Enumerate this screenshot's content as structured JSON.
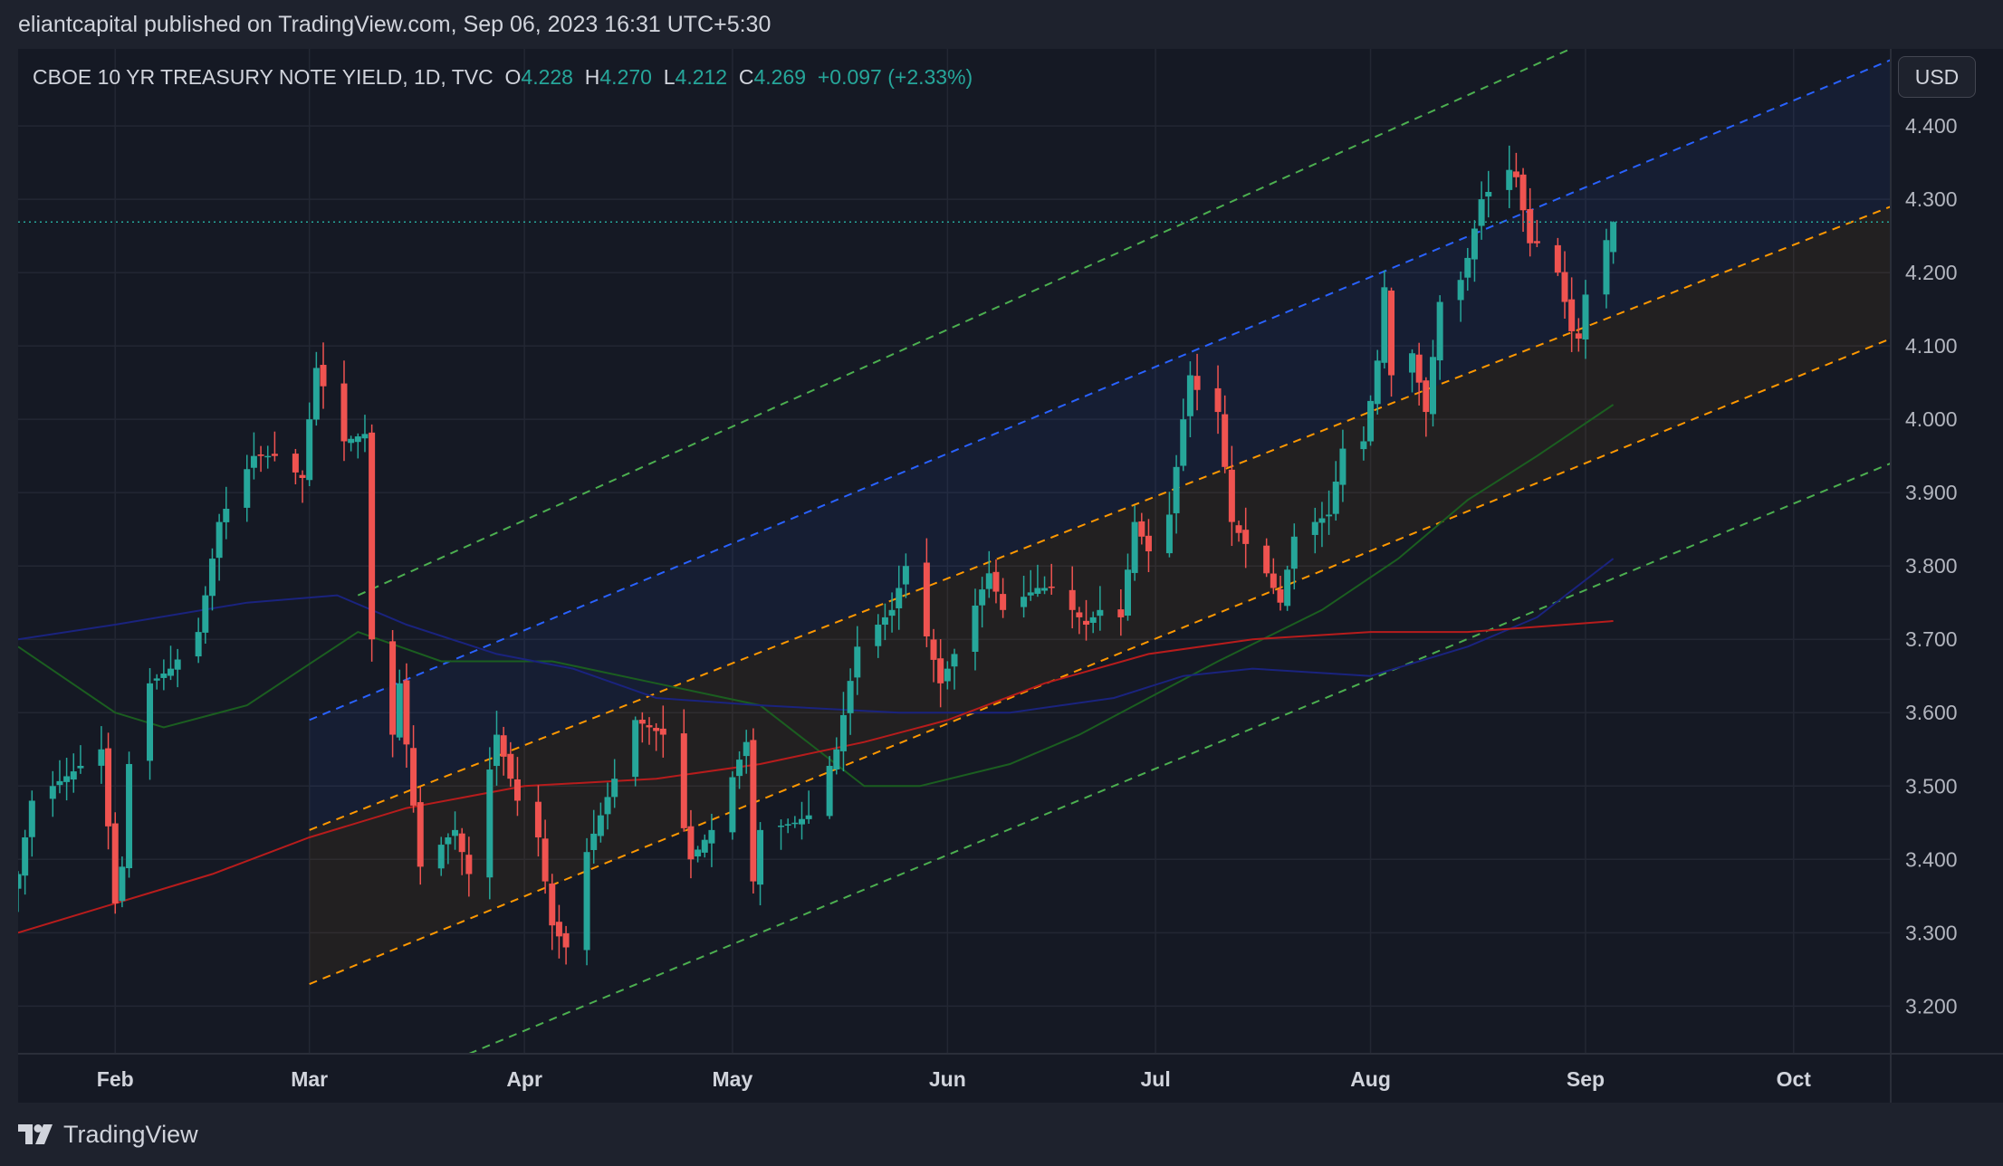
{
  "header": {
    "published_text": "eliantcapital published on TradingView.com, Sep 06, 2023 16:31 UTC+5:30"
  },
  "legend": {
    "symbol": "CBOE 10 YR TREASURY NOTE YIELD, 1D, TVC",
    "open_label": "O",
    "open": "4.228",
    "high_label": "H",
    "high": "4.270",
    "low_label": "L",
    "low": "4.212",
    "close_label": "C",
    "close": "4.269",
    "change": "+0.097 (+2.33%)"
  },
  "currency_button": "USD",
  "last_price_label": "4.269",
  "footer": {
    "brand": "TradingView"
  },
  "colors": {
    "up": "#26a69a",
    "down": "#ef5350",
    "background": "#151924",
    "channel_blue": "#2962ff",
    "channel_orange": "#ff9800",
    "channel_green": "#4caf50",
    "ma_fast": "#1b5e20",
    "ma_mid": "#1a237e",
    "ma_slow": "#b71c1c"
  },
  "chart_data": {
    "type": "candlestick",
    "title": "CBOE 10 YR TREASURY NOTE YIELD, 1D, TVC",
    "x_tick_labels": [
      "Feb",
      "Mar",
      "Apr",
      "May",
      "Jun",
      "Jul",
      "Aug",
      "Sep",
      "Oct"
    ],
    "x_tick_dates": [
      "2023-02-01",
      "2023-03-01",
      "2023-04-01",
      "2023-05-01",
      "2023-06-01",
      "2023-07-01",
      "2023-08-01",
      "2023-09-01",
      "2023-10-01"
    ],
    "x_range": [
      "2023-01-18",
      "2023-10-15"
    ],
    "y_tick_labels": [
      "4.400",
      "4.300",
      "4.200",
      "4.100",
      "4.000",
      "3.900",
      "3.800",
      "3.700",
      "3.600",
      "3.500",
      "3.400",
      "3.300",
      "3.200"
    ],
    "ylim": [
      3.135,
      4.505
    ],
    "grid": true,
    "last_price_line": 4.269,
    "anchors": [
      [
        "2023-01-18",
        3.38
      ],
      [
        "2023-01-20",
        3.48
      ],
      [
        "2023-01-26",
        3.52
      ],
      [
        "2023-01-30",
        3.55
      ],
      [
        "2023-02-01",
        3.34
      ],
      [
        "2023-02-02",
        3.39
      ],
      [
        "2023-02-03",
        3.53
      ],
      [
        "2023-02-06",
        3.64
      ],
      [
        "2023-02-09",
        3.66
      ],
      [
        "2023-02-13",
        3.71
      ],
      [
        "2023-02-16",
        3.86
      ],
      [
        "2023-02-21",
        3.95
      ],
      [
        "2023-02-24",
        3.95
      ],
      [
        "2023-02-28",
        3.92
      ],
      [
        "2023-03-01",
        4.0
      ],
      [
        "2023-03-02",
        4.07
      ],
      [
        "2023-03-06",
        3.97
      ],
      [
        "2023-03-09",
        3.98
      ],
      [
        "2023-03-10",
        3.7
      ],
      [
        "2023-03-13",
        3.57
      ],
      [
        "2023-03-14",
        3.64
      ],
      [
        "2023-03-17",
        3.39
      ],
      [
        "2023-03-22",
        3.44
      ],
      [
        "2023-03-24",
        3.38
      ],
      [
        "2023-03-28",
        3.57
      ],
      [
        "2023-03-31",
        3.48
      ],
      [
        "2023-04-03",
        3.43
      ],
      [
        "2023-04-05",
        3.31
      ],
      [
        "2023-04-07",
        3.28
      ],
      [
        "2023-04-10",
        3.41
      ],
      [
        "2023-04-14",
        3.51
      ],
      [
        "2023-04-17",
        3.59
      ],
      [
        "2023-04-21",
        3.57
      ],
      [
        "2023-04-25",
        3.4
      ],
      [
        "2023-04-28",
        3.44
      ],
      [
        "2023-05-03",
        3.56
      ],
      [
        "2023-05-04",
        3.37
      ],
      [
        "2023-05-05",
        3.44
      ],
      [
        "2023-05-10",
        3.45
      ],
      [
        "2023-05-12",
        3.46
      ],
      [
        "2023-05-16",
        3.55
      ],
      [
        "2023-05-19",
        3.69
      ],
      [
        "2023-05-24",
        3.74
      ],
      [
        "2023-05-26",
        3.8
      ],
      [
        "2023-05-31",
        3.64
      ],
      [
        "2023-06-02",
        3.68
      ],
      [
        "2023-06-07",
        3.79
      ],
      [
        "2023-06-09",
        3.74
      ],
      [
        "2023-06-14",
        3.77
      ],
      [
        "2023-06-16",
        3.77
      ],
      [
        "2023-06-21",
        3.72
      ],
      [
        "2023-06-23",
        3.74
      ],
      [
        "2023-06-26",
        3.73
      ],
      [
        "2023-06-28",
        3.86
      ],
      [
        "2023-06-30",
        3.82
      ],
      [
        "2023-07-03",
        3.87
      ],
      [
        "2023-07-05",
        4.0
      ],
      [
        "2023-07-06",
        4.06
      ],
      [
        "2023-07-07",
        4.04
      ],
      [
        "2023-07-10",
        4.01
      ],
      [
        "2023-07-12",
        3.86
      ],
      [
        "2023-07-14",
        3.83
      ],
      [
        "2023-07-17",
        3.79
      ],
      [
        "2023-07-19",
        3.75
      ],
      [
        "2023-07-21",
        3.84
      ],
      [
        "2023-07-24",
        3.86
      ],
      [
        "2023-07-26",
        3.87
      ],
      [
        "2023-07-28",
        3.96
      ],
      [
        "2023-07-31",
        3.97
      ],
      [
        "2023-08-02",
        4.08
      ],
      [
        "2023-08-03",
        4.18
      ],
      [
        "2023-08-04",
        4.06
      ],
      [
        "2023-08-07",
        4.09
      ],
      [
        "2023-08-09",
        4.01
      ],
      [
        "2023-08-11",
        4.16
      ],
      [
        "2023-08-14",
        4.19
      ],
      [
        "2023-08-15",
        4.22
      ],
      [
        "2023-08-17",
        4.3
      ],
      [
        "2023-08-21",
        4.34
      ],
      [
        "2023-08-22",
        4.33
      ],
      [
        "2023-08-24",
        4.24
      ],
      [
        "2023-08-25",
        4.24
      ],
      [
        "2023-08-28",
        4.2
      ],
      [
        "2023-08-30",
        4.12
      ],
      [
        "2023-08-31",
        4.11
      ],
      [
        "2023-09-01",
        4.17
      ],
      [
        "2023-09-05",
        4.269
      ]
    ],
    "last_candle": {
      "date": "2023-09-05",
      "open": 4.228,
      "high": 4.27,
      "low": 4.212,
      "close": 4.269
    },
    "moving_averages": [
      {
        "color": "#1b5e20",
        "points": [
          [
            "2023-01-18",
            3.69
          ],
          [
            "2023-02-01",
            3.6
          ],
          [
            "2023-02-08",
            3.58
          ],
          [
            "2023-02-20",
            3.61
          ],
          [
            "2023-02-28",
            3.66
          ],
          [
            "2023-03-08",
            3.71
          ],
          [
            "2023-03-20",
            3.67
          ],
          [
            "2023-04-05",
            3.67
          ],
          [
            "2023-04-20",
            3.64
          ],
          [
            "2023-05-05",
            3.61
          ],
          [
            "2023-05-20",
            3.5
          ],
          [
            "2023-05-28",
            3.5
          ],
          [
            "2023-06-10",
            3.53
          ],
          [
            "2023-06-20",
            3.57
          ],
          [
            "2023-06-30",
            3.62
          ],
          [
            "2023-07-10",
            3.67
          ],
          [
            "2023-07-25",
            3.74
          ],
          [
            "2023-08-05",
            3.81
          ],
          [
            "2023-08-15",
            3.89
          ],
          [
            "2023-08-25",
            3.95
          ],
          [
            "2023-09-05",
            4.02
          ]
        ]
      },
      {
        "color": "#1a237e",
        "points": [
          [
            "2023-01-18",
            3.7
          ],
          [
            "2023-02-01",
            3.72
          ],
          [
            "2023-02-20",
            3.75
          ],
          [
            "2023-03-05",
            3.76
          ],
          [
            "2023-03-15",
            3.72
          ],
          [
            "2023-03-28",
            3.68
          ],
          [
            "2023-04-08",
            3.66
          ],
          [
            "2023-04-20",
            3.62
          ],
          [
            "2023-05-05",
            3.61
          ],
          [
            "2023-05-25",
            3.6
          ],
          [
            "2023-06-10",
            3.6
          ],
          [
            "2023-06-25",
            3.62
          ],
          [
            "2023-07-05",
            3.65
          ],
          [
            "2023-07-15",
            3.66
          ],
          [
            "2023-08-01",
            3.65
          ],
          [
            "2023-08-15",
            3.69
          ],
          [
            "2023-08-25",
            3.73
          ],
          [
            "2023-09-05",
            3.81
          ]
        ]
      },
      {
        "color": "#b71c1c",
        "points": [
          [
            "2023-01-18",
            3.3
          ],
          [
            "2023-02-01",
            3.34
          ],
          [
            "2023-02-15",
            3.38
          ],
          [
            "2023-03-01",
            3.43
          ],
          [
            "2023-03-15",
            3.47
          ],
          [
            "2023-04-01",
            3.5
          ],
          [
            "2023-04-20",
            3.51
          ],
          [
            "2023-05-05",
            3.53
          ],
          [
            "2023-05-20",
            3.56
          ],
          [
            "2023-06-01",
            3.59
          ],
          [
            "2023-06-15",
            3.64
          ],
          [
            "2023-06-30",
            3.68
          ],
          [
            "2023-07-15",
            3.7
          ],
          [
            "2023-08-01",
            3.71
          ],
          [
            "2023-08-15",
            3.71
          ],
          [
            "2023-09-05",
            3.725
          ]
        ]
      }
    ],
    "channel_lines": [
      {
        "color": "#4caf50",
        "from": [
          "2023-03-08",
          3.76
        ],
        "to": [
          "2023-08-31",
          4.51
        ]
      },
      {
        "color": "#2962ff",
        "from": [
          "2023-03-01",
          3.59
        ],
        "to": [
          "2023-10-15",
          4.49
        ]
      },
      {
        "color": "#ff9800",
        "from": [
          "2023-03-01",
          3.44
        ],
        "to": [
          "2023-10-15",
          4.29
        ]
      },
      {
        "color": "#ff9800",
        "from": [
          "2023-03-01",
          3.23
        ],
        "to": [
          "2023-10-15",
          4.11
        ]
      },
      {
        "color": "#4caf50",
        "from": [
          "2023-03-24",
          3.135
        ],
        "to": [
          "2023-10-15",
          3.94
        ]
      }
    ]
  }
}
